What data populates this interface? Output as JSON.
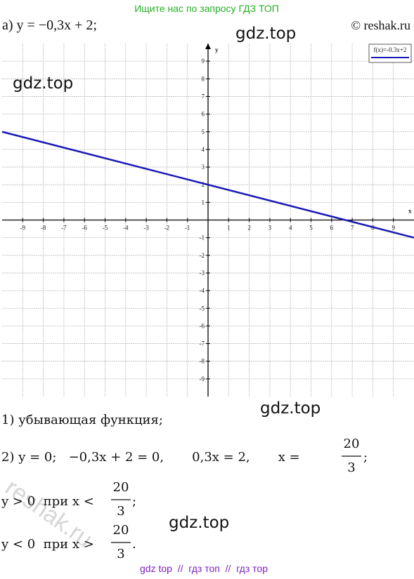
{
  "header": {
    "search_hint": "Ищите нас по запросу ГДЗ ТОП",
    "copyright": "© reshak.ru"
  },
  "problem": "а) y = −0,3x + 2;",
  "watermarks": [
    "gdz.top",
    "gdz.top",
    "gdz.top",
    "gdz.top"
  ],
  "logo_watermark": "reshak.ru",
  "chart_data": {
    "type": "line",
    "x": [
      -10,
      10
    ],
    "series": [
      {
        "name": "f(x)=-0.3x+2",
        "color": "#1a1ab8",
        "values": [
          5,
          -1
        ]
      }
    ],
    "xlim": [
      -10,
      10
    ],
    "ylim": [
      -10,
      10
    ],
    "xticks": [
      -9,
      -8,
      -7,
      -6,
      -5,
      -4,
      -3,
      -2,
      -1,
      1,
      2,
      3,
      4,
      5,
      6,
      7,
      8,
      9
    ],
    "yticks": [
      -9,
      -8,
      -7,
      -6,
      -5,
      -4,
      -3,
      -2,
      -1,
      1,
      2,
      3,
      4,
      5,
      6,
      7,
      8,
      9
    ],
    "x_label": "x",
    "y_label": "y",
    "grid": true
  },
  "answer": {
    "line1": "1) убывающая функция;",
    "line2": {
      "text": "2) y = 0;   −0,3x + 2 = 0,       0,3x = 2,       x =",
      "numerator": "20",
      "denominator": "3",
      "end": ";"
    },
    "line3": {
      "text": "y > 0  при x <",
      "numerator": "20",
      "denominator": "3",
      "end": ";"
    },
    "line4": {
      "text": "y < 0  при x >",
      "numerator": "20",
      "denominator": "3",
      "end": "."
    }
  },
  "footer": "gdz top  //  гдз топ  //  гдз тор"
}
